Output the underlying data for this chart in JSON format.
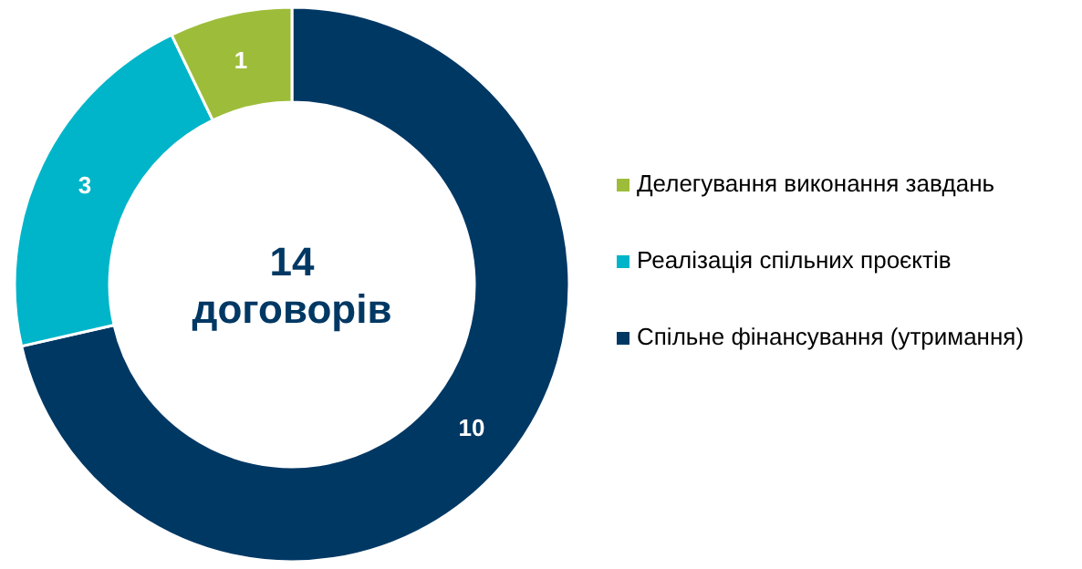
{
  "chart_data": {
    "type": "donut",
    "title": "14 договорів",
    "categories": [
      "Спільне фінансування (утримання)",
      "Реалізація спільних проєктів",
      "Делегування виконання завдань"
    ],
    "values": [
      10,
      3,
      1
    ],
    "colors": [
      "#003864",
      "#00b5c9",
      "#9dbd3a"
    ],
    "data_labels": true,
    "legend": "right"
  }
}
